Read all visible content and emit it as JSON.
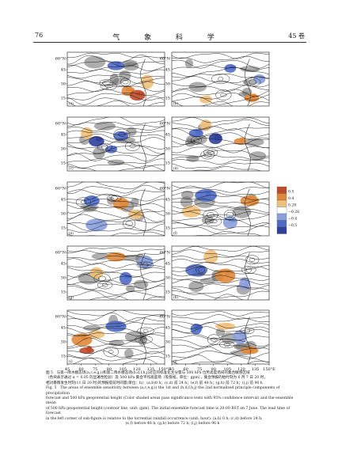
{
  "header": {
    "page_number": "76",
    "journal": "气 象 科 学",
    "volume": "45 卷"
  },
  "figure": {
    "lat_labels": [
      "60°N",
      "45",
      "30",
      "15"
    ],
    "lon_labels": [
      "45",
      "60",
      "75",
      "90",
      "105",
      "120",
      "135",
      "150°E"
    ],
    "panel_letters": [
      "a",
      "b",
      "c",
      "d",
      "e",
      "f",
      "g",
      "h",
      "i",
      "j"
    ],
    "colorbar_labels": [
      "0.5",
      "0.4",
      "0.28",
      "−0.28",
      "−0.4",
      "−0.5"
    ],
    "colors": {
      "positive_dark": "#c04a2a",
      "positive": "#e0893a",
      "positive_light": "#efc07a",
      "negative_light": "#8aa0dd",
      "negative": "#4f6bc8",
      "negative_dark": "#2e3f9e",
      "contour": "#111111"
    }
  },
  "caption": {
    "cn_line1": "图 5　与第一降水模态场(a,c,e,g,i)和第二降水模态场(b,d,f,h,j)对应的标准化主分量与 500 hPa 位势高度场间的集合敏感区域",
    "cn_line2": "（色块表示通过 α = 0.05 的显著性检验）及 500 hPa 集合平均高度场（等值线，单位：gpm），集合预报的始时刻为 6 月 7 日 20 时，",
    "cn_line3": "相对暴雨发生时刻(11 日 20 时)的预报提前时间量(单位：h)：(a,b)0 h；(c,d) 前 24 h；(e,f) 前 48 h；(g,h) 前 72 h；(i,j) 前 96 h",
    "en_line1": "Fig. 5　The areas of ensemble sensitivity between (a,c,e,g,i) the 1st and (b,d,f,h,j) the 2nd normalized principle components of precipitation",
    "en_line2": "forecast and 500 hPa geopotential height (Color shaded areas pass significance tests with 95% confidence interval) and the ensemble mean",
    "en_line3": "of 500 hPa geopotential height (contour line, unit: gpm). The initial ensemble forecast time is 20:00 BST on 7 June. The lead time of forecast",
    "en_line4": "in the left corner of sub-figure is relative to the torrential rainfall occurrence (unit: hour): (a,b) 0 h; (c,d) before 24 h;",
    "en_line5": "(e,f) before 48 h; (g,h) before 72 h; (i,j) before 96 h"
  }
}
